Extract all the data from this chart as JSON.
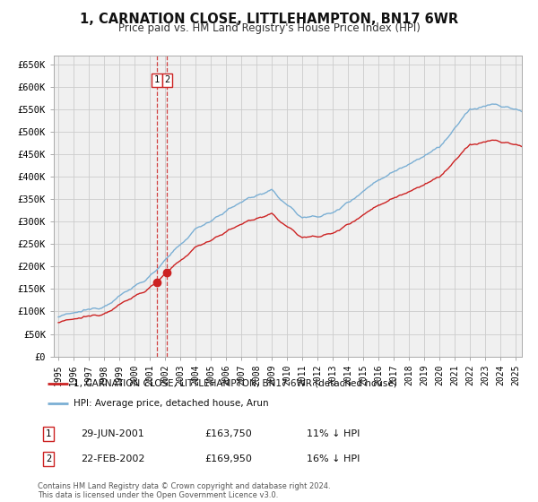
{
  "title": "1, CARNATION CLOSE, LITTLEHAMPTON, BN17 6WR",
  "subtitle": "Price paid vs. HM Land Registry's House Price Index (HPI)",
  "ylabel_ticks": [
    "£0",
    "£50K",
    "£100K",
    "£150K",
    "£200K",
    "£250K",
    "£300K",
    "£350K",
    "£400K",
    "£450K",
    "£500K",
    "£550K",
    "£600K",
    "£650K"
  ],
  "ytick_values": [
    0,
    50000,
    100000,
    150000,
    200000,
    250000,
    300000,
    350000,
    400000,
    450000,
    500000,
    550000,
    600000,
    650000
  ],
  "x_start_year": 1995,
  "x_end_year": 2025,
  "hpi_color": "#7bafd4",
  "price_color": "#cc2222",
  "transaction_dates": [
    "2001-06-29",
    "2002-02-22"
  ],
  "transaction_prices": [
    163750,
    169950
  ],
  "transaction_labels": [
    "1",
    "2"
  ],
  "vline_color": "#cc2222",
  "legend_entries": [
    "1, CARNATION CLOSE, LITTLEHAMPTON, BN17 6WR (detached house)",
    "HPI: Average price, detached house, Arun"
  ],
  "table_rows": [
    {
      "label": "1",
      "date": "29-JUN-2001",
      "price": "£163,750",
      "hpi_diff": "11% ↓ HPI"
    },
    {
      "label": "2",
      "date": "22-FEB-2002",
      "price": "£169,950",
      "hpi_diff": "16% ↓ HPI"
    }
  ],
  "footer": "Contains HM Land Registry data © Crown copyright and database right 2024.\nThis data is licensed under the Open Government Licence v3.0.",
  "bg_color": "#ffffff",
  "grid_color": "#cccccc",
  "plot_bg_color": "#f0f0f0"
}
